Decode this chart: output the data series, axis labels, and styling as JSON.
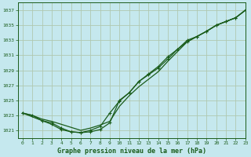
{
  "background_color": "#c5e8ee",
  "grid_color": "#b0c8b0",
  "line_color": "#1a5c1a",
  "title": "Graphe pression niveau de la mer (hPa)",
  "xlim": [
    -0.5,
    23
  ],
  "ylim": [
    1020,
    1038
  ],
  "yticks": [
    1021,
    1023,
    1025,
    1027,
    1029,
    1031,
    1033,
    1035,
    1037
  ],
  "xticks": [
    0,
    1,
    2,
    3,
    4,
    5,
    6,
    7,
    8,
    9,
    10,
    11,
    12,
    13,
    14,
    15,
    16,
    17,
    18,
    19,
    20,
    21,
    22,
    23
  ],
  "line1_x": [
    0,
    1,
    2,
    3,
    4,
    5,
    6,
    7,
    8,
    9,
    10,
    11,
    12,
    13,
    14,
    15,
    16,
    17,
    18,
    19,
    20,
    21,
    22,
    23
  ],
  "line1_y": [
    1023.3,
    1023.0,
    1022.5,
    1022.2,
    1021.8,
    1021.4,
    1021.0,
    1021.3,
    1021.7,
    1022.2,
    1024.2,
    1025.6,
    1026.8,
    1027.8,
    1028.8,
    1030.2,
    1031.5,
    1032.8,
    1033.5,
    1034.2,
    1035.0,
    1035.5,
    1036.0,
    1037.0
  ],
  "line2_x": [
    0,
    1,
    2,
    3,
    4,
    5,
    6,
    7,
    8,
    9,
    10,
    11,
    12,
    13,
    14,
    15,
    16,
    17,
    18,
    19,
    20,
    21,
    22,
    23
  ],
  "line2_y": [
    1023.3,
    1023.0,
    1022.3,
    1021.8,
    1021.1,
    1020.8,
    1020.7,
    1020.8,
    1021.1,
    1022.0,
    1025.0,
    1026.0,
    1027.5,
    1028.5,
    1029.5,
    1030.8,
    1031.8,
    1033.0,
    1033.5,
    1034.2,
    1035.0,
    1035.5,
    1036.0,
    1037.0
  ],
  "line3_x": [
    0,
    2,
    3,
    4,
    5,
    6,
    7,
    8,
    9,
    10,
    11,
    12,
    13,
    14,
    15,
    16,
    17,
    18,
    19,
    20,
    21,
    22,
    23
  ],
  "line3_y": [
    1023.3,
    1022.3,
    1022.0,
    1021.3,
    1020.8,
    1020.7,
    1021.0,
    1021.5,
    1023.3,
    1024.9,
    1026.0,
    1027.5,
    1028.4,
    1029.3,
    1030.5,
    1031.8,
    1032.8,
    1033.5,
    1034.2,
    1035.0,
    1035.5,
    1036.0,
    1037.0
  ]
}
